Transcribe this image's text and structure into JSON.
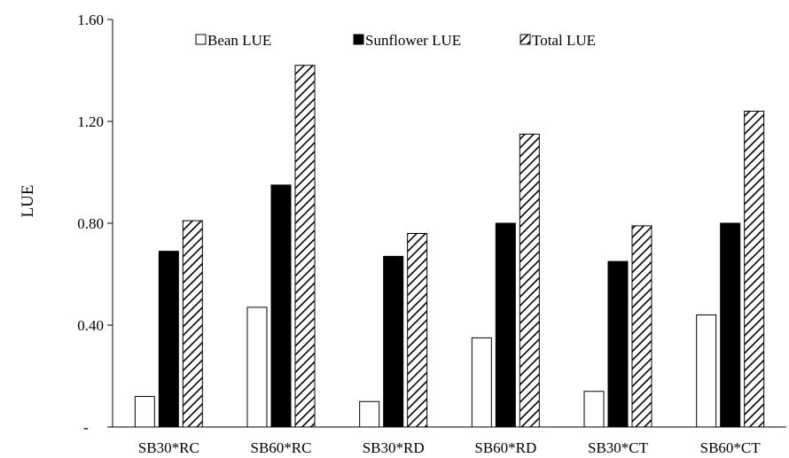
{
  "chart_data": {
    "type": "bar",
    "categories": [
      "SB30*RC",
      "SB60*RC",
      "SB30*RD",
      "SB60*RD",
      "SB30*CT",
      "SB60*CT"
    ],
    "series": [
      {
        "name": "Bean LUE",
        "values": [
          0.12,
          0.47,
          0.1,
          0.35,
          0.14,
          0.44
        ],
        "color": "#ffffff",
        "pattern": "none"
      },
      {
        "name": "Sunflower LUE",
        "values": [
          0.69,
          0.95,
          0.67,
          0.8,
          0.65,
          0.8
        ],
        "color": "#000000",
        "pattern": "solid"
      },
      {
        "name": "Total LUE",
        "values": [
          0.81,
          1.42,
          0.76,
          1.15,
          0.79,
          1.24
        ],
        "color": "#ffffff",
        "pattern": "diagonal-hatch"
      }
    ],
    "ylabel": "LUE",
    "xlabel": "",
    "ylim": [
      0,
      1.6
    ],
    "yticks": [
      {
        "value": 0,
        "label": "-"
      },
      {
        "value": 0.4,
        "label": "0.40"
      },
      {
        "value": 0.8,
        "label": "0.80"
      },
      {
        "value": 1.2,
        "label": "1.20"
      },
      {
        "value": 1.6,
        "label": "1.60"
      }
    ],
    "grid": false,
    "legend_position": "top"
  }
}
